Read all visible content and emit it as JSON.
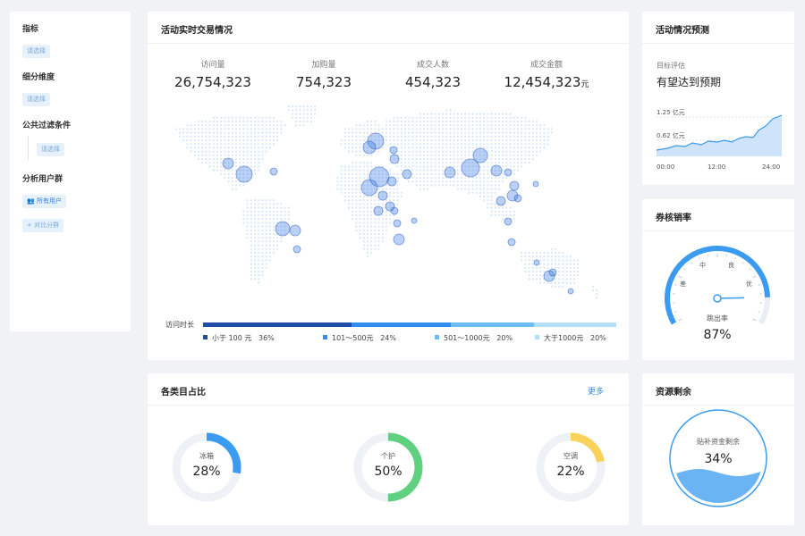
{
  "sidebar": {
    "sections": [
      {
        "label": "指标",
        "chip": "请选择"
      },
      {
        "label": "细分维度",
        "chip": "请选择"
      },
      {
        "label": "公共过滤条件",
        "chip": "请选择"
      }
    ],
    "user_group_label": "分析用户群",
    "all_users": "所有用户",
    "compare": "对比分群"
  },
  "map_card": {
    "title": "活动实时交易情况",
    "stats": [
      {
        "label": "访问量",
        "value": "26,754,323",
        "suffix": ""
      },
      {
        "label": "加购量",
        "value": "754,323",
        "suffix": ""
      },
      {
        "label": "成交人数",
        "value": "454,323",
        "suffix": ""
      },
      {
        "label": "成交金额",
        "value": "12,454,323",
        "suffix": "元"
      }
    ],
    "legend_title": "访问时长",
    "legend": [
      {
        "label": "小于 100 元",
        "pct": "36%",
        "share": 36,
        "color": "#1d4fa8"
      },
      {
        "label": "101～500元",
        "pct": "24%",
        "share": 24,
        "color": "#2f8ef0"
      },
      {
        "label": "501～1000元",
        "pct": "20%",
        "share": 20,
        "color": "#6cbcf5"
      },
      {
        "label": "大于1000元",
        "pct": "20%",
        "share": 20,
        "color": "#b5e0f9"
      }
    ]
  },
  "forecast": {
    "title": "活动情况预测",
    "label": "目标评估",
    "value": "有望达到预期",
    "y_ticks": [
      "1.25 亿元",
      "0.62 亿元"
    ],
    "x_ticks": [
      "00:00",
      "12:00",
      "24:00"
    ]
  },
  "gauge": {
    "title": "券核销率",
    "labels": {
      "bad": "差",
      "mid": "中",
      "good": "良",
      "excellent": "优"
    },
    "caption": "跳出率",
    "value": "87%",
    "level": 0.87,
    "color": "#3a9bf0"
  },
  "categories": {
    "title": "各类目占比",
    "more": "更多",
    "items": [
      {
        "name": "冰箱",
        "pct": "28%",
        "share": 0.28,
        "color": "#3a9bf0"
      },
      {
        "name": "个护",
        "pct": "50%",
        "share": 0.5,
        "color": "#5fcf80"
      },
      {
        "name": "空调",
        "pct": "22%",
        "share": 0.22,
        "color": "#f8d25a"
      }
    ]
  },
  "resources": {
    "title": "资源剩余",
    "label": "贴补资金剩余",
    "value": "34%",
    "level": 0.34,
    "color": "#3a9bf0"
  }
}
